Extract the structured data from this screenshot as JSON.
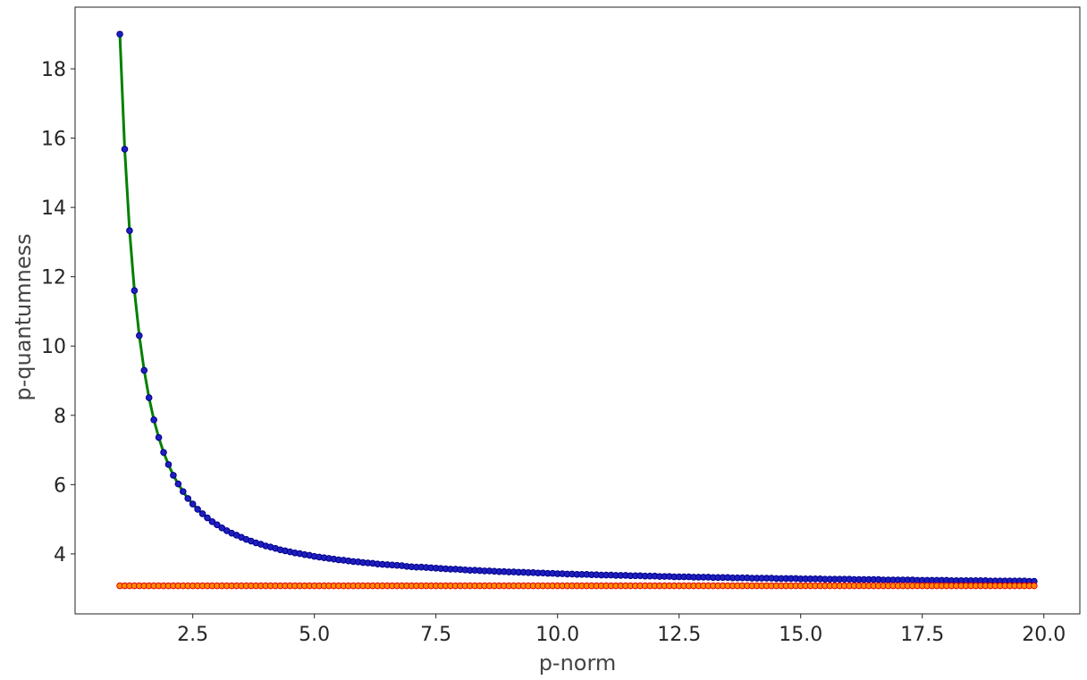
{
  "chart_data": {
    "type": "line",
    "x_label": "p-norm",
    "y_label": "p-quantumness",
    "x": [
      1,
      1.1,
      1.2,
      1.3,
      1.4,
      1.5,
      1.6,
      1.7,
      1.8,
      1.9,
      2,
      2.1,
      2.2,
      2.3,
      2.4,
      2.5,
      2.6,
      2.7,
      2.8,
      2.9,
      3,
      3.1,
      3.2,
      3.3,
      3.4,
      3.5,
      3.6,
      3.7,
      3.8,
      3.9,
      4,
      4.1,
      4.2,
      4.3,
      4.4,
      4.5,
      4.6,
      4.7,
      4.8,
      4.9,
      5,
      5.1,
      5.2,
      5.3,
      5.4,
      5.5,
      5.6,
      5.7,
      5.8,
      5.9,
      6,
      6.1,
      6.2,
      6.3,
      6.4,
      6.5,
      6.6,
      6.7,
      6.8,
      6.9,
      7,
      7.1,
      7.2,
      7.3,
      7.4,
      7.5,
      7.6,
      7.7,
      7.8,
      7.9,
      8,
      8.1,
      8.2,
      8.3,
      8.4,
      8.5,
      8.6,
      8.7,
      8.8,
      8.9,
      9,
      9.1,
      9.2,
      9.3,
      9.4,
      9.5,
      9.6,
      9.7,
      9.8,
      9.9,
      10,
      10.1,
      10.2,
      10.3,
      10.4,
      10.5,
      10.6,
      10.7,
      10.8,
      10.9,
      11,
      11.1,
      11.2,
      11.3,
      11.4,
      11.5,
      11.6,
      11.7,
      11.8,
      11.9,
      12,
      12.1,
      12.2,
      12.3,
      12.4,
      12.5,
      12.6,
      12.7,
      12.8,
      12.9,
      13,
      13.1,
      13.2,
      13.3,
      13.4,
      13.5,
      13.6,
      13.7,
      13.8,
      13.9,
      14,
      14.1,
      14.2,
      14.3,
      14.4,
      14.5,
      14.6,
      14.7,
      14.8,
      14.9,
      15,
      15.1,
      15.2,
      15.3,
      15.4,
      15.5,
      15.6,
      15.7,
      15.8,
      15.9,
      16,
      16.1,
      16.2,
      16.3,
      16.4,
      16.5,
      16.6,
      16.7,
      16.8,
      16.9,
      17,
      17.1,
      17.2,
      17.3,
      17.4,
      17.5,
      17.6,
      17.7,
      17.8,
      17.9,
      18,
      18.1,
      18.2,
      18.3,
      18.4,
      18.5,
      18.6,
      18.7,
      18.8,
      18.9,
      19,
      19.1,
      19.2,
      19.3,
      19.4,
      19.5,
      19.6,
      19.7,
      19.8
    ],
    "series": [
      {
        "color": "#008000",
        "marker_color": "#1f1fbf",
        "marker_edge": "#00008b",
        "values": [
          19.0,
          15.68,
          13.33,
          11.6,
          10.3,
          9.3,
          8.51,
          7.87,
          7.36,
          6.93,
          6.58,
          6.27,
          6.02,
          5.8,
          5.6,
          5.44,
          5.29,
          5.16,
          5.04,
          4.93,
          4.84,
          4.75,
          4.67,
          4.6,
          4.54,
          4.48,
          4.42,
          4.37,
          4.32,
          4.28,
          4.23,
          4.2,
          4.16,
          4.12,
          4.09,
          4.06,
          4.03,
          4.01,
          3.98,
          3.96,
          3.93,
          3.91,
          3.89,
          3.87,
          3.85,
          3.83,
          3.82,
          3.8,
          3.78,
          3.77,
          3.75,
          3.74,
          3.73,
          3.71,
          3.7,
          3.69,
          3.68,
          3.67,
          3.66,
          3.64,
          3.63,
          3.62,
          3.62,
          3.61,
          3.6,
          3.59,
          3.58,
          3.57,
          3.56,
          3.56,
          3.55,
          3.54,
          3.53,
          3.53,
          3.52,
          3.51,
          3.51,
          3.5,
          3.49,
          3.49,
          3.48,
          3.48,
          3.47,
          3.47,
          3.46,
          3.46,
          3.45,
          3.45,
          3.44,
          3.44,
          3.43,
          3.43,
          3.42,
          3.42,
          3.41,
          3.41,
          3.41,
          3.4,
          3.4,
          3.39,
          3.39,
          3.39,
          3.38,
          3.38,
          3.38,
          3.37,
          3.37,
          3.37,
          3.36,
          3.36,
          3.36,
          3.35,
          3.35,
          3.35,
          3.34,
          3.34,
          3.34,
          3.34,
          3.33,
          3.33,
          3.33,
          3.33,
          3.32,
          3.32,
          3.32,
          3.32,
          3.31,
          3.31,
          3.31,
          3.31,
          3.3,
          3.3,
          3.3,
          3.3,
          3.3,
          3.29,
          3.29,
          3.29,
          3.29,
          3.29,
          3.28,
          3.28,
          3.28,
          3.28,
          3.28,
          3.27,
          3.27,
          3.27,
          3.27,
          3.27,
          3.27,
          3.26,
          3.26,
          3.26,
          3.26,
          3.26,
          3.26,
          3.25,
          3.25,
          3.25,
          3.25,
          3.25,
          3.25,
          3.25,
          3.24,
          3.24,
          3.24,
          3.24,
          3.24,
          3.24,
          3.24,
          3.23,
          3.23,
          3.23,
          3.23,
          3.23,
          3.23,
          3.23,
          3.23,
          3.22,
          3.22,
          3.22,
          3.22,
          3.22,
          3.22,
          3.22,
          3.22,
          3.21,
          3.21
        ]
      },
      {
        "color": "#e00000",
        "marker_color": "#ff8c00",
        "marker_edge": "#e00000",
        "values": [
          3.08,
          3.08,
          3.08,
          3.08,
          3.08,
          3.08,
          3.08,
          3.08,
          3.08,
          3.08,
          3.08,
          3.08,
          3.08,
          3.08,
          3.08,
          3.08,
          3.08,
          3.08,
          3.08,
          3.08,
          3.08,
          3.08,
          3.08,
          3.08,
          3.08,
          3.08,
          3.08,
          3.08,
          3.08,
          3.08,
          3.08,
          3.08,
          3.08,
          3.08,
          3.08,
          3.08,
          3.08,
          3.08,
          3.08,
          3.08,
          3.08,
          3.08,
          3.08,
          3.08,
          3.08,
          3.08,
          3.08,
          3.08,
          3.08,
          3.08,
          3.08,
          3.08,
          3.08,
          3.08,
          3.08,
          3.08,
          3.08,
          3.08,
          3.08,
          3.08,
          3.08,
          3.08,
          3.08,
          3.08,
          3.08,
          3.08,
          3.08,
          3.08,
          3.08,
          3.08,
          3.08,
          3.08,
          3.08,
          3.08,
          3.08,
          3.08,
          3.08,
          3.08,
          3.08,
          3.08,
          3.08,
          3.08,
          3.08,
          3.08,
          3.08,
          3.08,
          3.08,
          3.08,
          3.08,
          3.08,
          3.08,
          3.08,
          3.08,
          3.08,
          3.08,
          3.08,
          3.08,
          3.08,
          3.08,
          3.08,
          3.08,
          3.08,
          3.08,
          3.08,
          3.08,
          3.08,
          3.08,
          3.08,
          3.08,
          3.08,
          3.08,
          3.08,
          3.08,
          3.08,
          3.08,
          3.08,
          3.08,
          3.08,
          3.08,
          3.08,
          3.08,
          3.08,
          3.08,
          3.08,
          3.08,
          3.08,
          3.08,
          3.08,
          3.08,
          3.08,
          3.08,
          3.08,
          3.08,
          3.08,
          3.08,
          3.08,
          3.08,
          3.08,
          3.08,
          3.08,
          3.08,
          3.08,
          3.08,
          3.08,
          3.08,
          3.08,
          3.08,
          3.08,
          3.08,
          3.08,
          3.08,
          3.08,
          3.08,
          3.08,
          3.08,
          3.08,
          3.08,
          3.08,
          3.08,
          3.08,
          3.08,
          3.08,
          3.08,
          3.08,
          3.08,
          3.08,
          3.08,
          3.08,
          3.08,
          3.08,
          3.08,
          3.08,
          3.08,
          3.08,
          3.08,
          3.08,
          3.08,
          3.08,
          3.08,
          3.08,
          3.08,
          3.08,
          3.08,
          3.08,
          3.08,
          3.08,
          3.08,
          3.08,
          3.08
        ]
      }
    ],
    "xlim": [
      0.08,
      20.74
    ],
    "ylim": [
      2.27,
      19.78
    ],
    "xticks": [
      2.5,
      {
        "value": 5,
        "label": "5.0"
      },
      7.5,
      {
        "value": 10,
        "label": "10.0"
      },
      12.5,
      {
        "value": 15,
        "label": "15.0"
      },
      17.5,
      {
        "value": 20,
        "label": "20.0"
      }
    ],
    "yticks": [
      4,
      6,
      8,
      10,
      12,
      14,
      16,
      18
    ],
    "grid": false
  }
}
